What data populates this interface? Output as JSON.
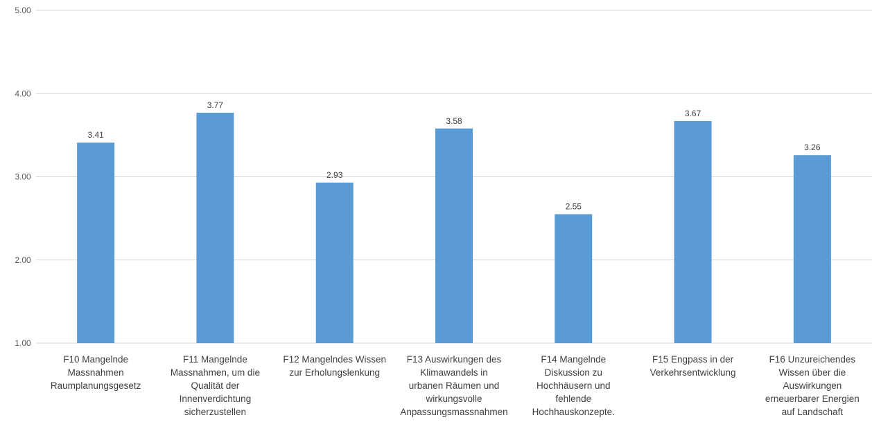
{
  "chart_data": {
    "type": "bar",
    "title": "",
    "xlabel": "",
    "ylabel": "",
    "ylim": [
      1,
      5
    ],
    "yticks": [
      "1.00",
      "2.00",
      "3.00",
      "4.00",
      "5.00"
    ],
    "grid": true,
    "bar_color": "#5b9bd5",
    "categories": [
      [
        "F10 Mangelnde",
        "Massnahmen",
        "Raumplanungsgesetz"
      ],
      [
        "F11 Mangelnde",
        "Massnahmen, um die",
        "Qualität der",
        "Innenverdichtung",
        "sicherzustellen"
      ],
      [
        "F12 Mangelndes Wissen",
        "zur Erholungslenkung"
      ],
      [
        "F13 Auswirkungen des",
        "Klimawandels  in",
        "urbanen Räumen und",
        "wirkungsvolle",
        "Anpassungsmassnahmen"
      ],
      [
        "F14 Mangelnde",
        "Diskussion zu",
        "Hochhäusern und",
        "fehlende",
        "Hochhauskonzepte."
      ],
      [
        "F15 Engpass in der",
        "Verkehrsentwicklung"
      ],
      [
        "F16 Unzureichendes",
        "Wissen über die",
        "Auswirkungen",
        "erneuerbarer Energien",
        "auf Landschaft"
      ]
    ],
    "values": [
      3.41,
      3.77,
      2.93,
      3.58,
      2.55,
      3.67,
      3.26
    ],
    "data_labels": [
      "3.41",
      "3.77",
      "2.93",
      "3.58",
      "2.55",
      "3.67",
      "3.26"
    ]
  }
}
